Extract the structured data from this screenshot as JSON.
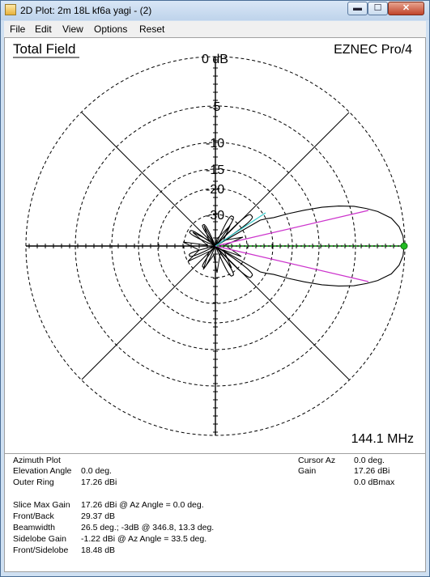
{
  "window": {
    "title": "2D Plot: 2m 18L kf6a yagi - (2)"
  },
  "caption_buttons": {
    "minimize": "▬",
    "maximize": "☐",
    "close": "✕"
  },
  "menu": {
    "items": [
      "File",
      "Edit",
      "View",
      "Options",
      "Reset"
    ]
  },
  "plot": {
    "field_label": "Total Field",
    "program_label": "EZNEC Pro/4",
    "frequency": "144.1 MHz",
    "ring_labels": [
      "0 dB",
      "-5",
      "-10",
      "-15",
      "-20",
      "-30"
    ],
    "colors": {
      "pattern": "#000000",
      "beamwidth_lines": "#cc33cc",
      "sidelobe_line": "#33cccc",
      "cursor_line": "#22aa22"
    }
  },
  "info": {
    "left": [
      {
        "label": "Azimuth Plot",
        "value": ""
      },
      {
        "label": "Elevation Angle",
        "value": "0.0 deg."
      },
      {
        "label": "Outer Ring",
        "value": "17.26 dBi"
      },
      {
        "label": "Slice Max Gain",
        "value": "17.26 dBi @ Az Angle = 0.0 deg."
      },
      {
        "label": "Front/Back",
        "value": "29.37 dB"
      },
      {
        "label": "Beamwidth",
        "value": "26.5 deg.; -3dB @ 346.8, 13.3 deg."
      },
      {
        "label": "Sidelobe Gain",
        "value": "-1.22 dBi @ Az Angle = 33.5 deg."
      },
      {
        "label": "Front/Sidelobe",
        "value": "18.48 dB"
      }
    ],
    "right": [
      {
        "label": "Cursor Az",
        "value": "0.0 deg."
      },
      {
        "label": "Gain",
        "value": "17.26 dBi"
      },
      {
        "label": "",
        "value": "0.0 dBmax"
      }
    ]
  }
}
